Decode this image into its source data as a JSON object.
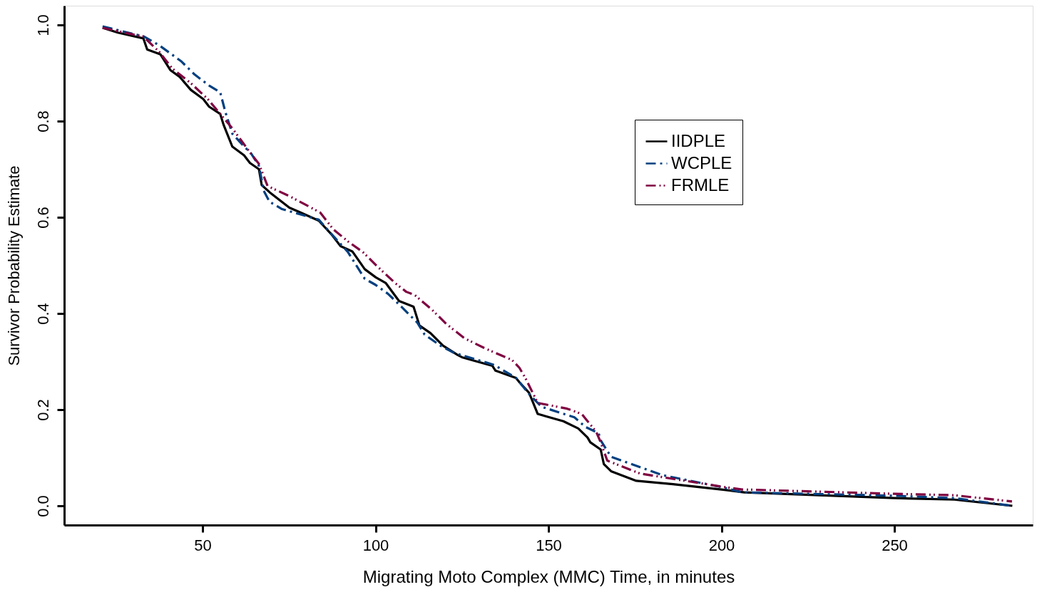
{
  "chart_data": {
    "type": "line",
    "xlabel": "Migrating Moto Complex (MMC) Time, in minutes",
    "ylabel": "Survivor Probability Estimate",
    "xlim": [
      10,
      290
    ],
    "xticks": [
      50,
      100,
      150,
      200,
      250
    ],
    "ylim": [
      -0.04,
      1.04
    ],
    "yticks": [
      {
        "value": 0,
        "label": "0.0"
      },
      0.2,
      0.4,
      0.6,
      0.8,
      {
        "value": 1,
        "label": "1.0"
      }
    ],
    "grid": false,
    "legend": "top right",
    "series": [
      {
        "name": "IIDPLE",
        "color": "#000000",
        "line_style": "solid",
        "x": [
          21.1,
          25.5,
          32.9,
          34.0,
          37.8,
          40.7,
          43.4,
          46.6,
          50.2,
          51.9,
          55.1,
          56.1,
          58.6,
          62.0,
          63.7,
          66.3,
          67.1,
          69.4,
          75.1,
          78.3,
          83.6,
          87.2,
          89.9,
          93.3,
          96.9,
          100.1,
          103.0,
          106.8,
          111.0,
          112.7,
          115.9,
          119.5,
          123.7,
          125.0,
          133.8,
          134.7,
          140.6,
          141.6,
          144.4,
          146.9,
          154.3,
          158.6,
          161.3,
          162.1,
          165.1,
          166.0,
          168.1,
          175.4,
          186.0,
          200.0,
          206.6,
          250.0,
          267.3,
          284.1
        ],
        "values": [
          0.994,
          0.984,
          0.972,
          0.949,
          0.939,
          0.906,
          0.892,
          0.865,
          0.846,
          0.83,
          0.815,
          0.792,
          0.747,
          0.729,
          0.713,
          0.7,
          0.667,
          0.652,
          0.62,
          0.61,
          0.593,
          0.565,
          0.54,
          0.529,
          0.492,
          0.475,
          0.463,
          0.426,
          0.414,
          0.375,
          0.359,
          0.333,
          0.314,
          0.309,
          0.291,
          0.281,
          0.266,
          0.257,
          0.235,
          0.191,
          0.176,
          0.161,
          0.142,
          0.132,
          0.117,
          0.087,
          0.072,
          0.052,
          0.045,
          0.034,
          0.028,
          0.016,
          0.013,
          0.0
        ]
      },
      {
        "name": "WCPLE",
        "color": "#003f7f",
        "line_style": "dashdot",
        "x": [
          21.1,
          33.0,
          37.6,
          42.0,
          43.9,
          47.7,
          51.9,
          55.1,
          56.6,
          58.6,
          61.4,
          64.1,
          66.3,
          67.7,
          69.4,
          73.0,
          83.6,
          87.8,
          92.0,
          96.9,
          99.9,
          103.6,
          107.2,
          112.1,
          114.2,
          118.8,
          122.7,
          134.3,
          140.6,
          144.8,
          148.0,
          157.5,
          160.7,
          164.5,
          165.1,
          168.1,
          182.8,
          200.0,
          206.0,
          250.0,
          267.3,
          284.0
        ],
        "values": [
          0.997,
          0.976,
          0.957,
          0.934,
          0.924,
          0.897,
          0.874,
          0.86,
          0.819,
          0.774,
          0.752,
          0.732,
          0.707,
          0.655,
          0.632,
          0.617,
          0.595,
          0.561,
          0.528,
          0.472,
          0.46,
          0.441,
          0.416,
          0.381,
          0.356,
          0.333,
          0.318,
          0.293,
          0.266,
          0.229,
          0.206,
          0.184,
          0.164,
          0.151,
          0.136,
          0.102,
          0.064,
          0.039,
          0.028,
          0.021,
          0.016,
          0.0
        ]
      },
      {
        "name": "FRMLE",
        "color": "#7f0040",
        "line_style": "dashdotdot",
        "x": [
          21.1,
          28.7,
          32.9,
          37.6,
          41.3,
          46.6,
          51.5,
          55.1,
          58.6,
          63.5,
          66.3,
          68.8,
          75.1,
          84.0,
          87.8,
          92.0,
          96.3,
          100.5,
          105.7,
          108.9,
          111.4,
          116.3,
          120.5,
          125.8,
          132.1,
          139.5,
          141.6,
          143.3,
          146.9,
          155.4,
          159.6,
          163.8,
          165.1,
          167.0,
          176.5,
          200.0,
          206.0,
          250.0,
          267.3,
          284.0
        ],
        "values": [
          0.994,
          0.982,
          0.976,
          0.943,
          0.909,
          0.879,
          0.846,
          0.815,
          0.785,
          0.737,
          0.711,
          0.665,
          0.644,
          0.61,
          0.575,
          0.55,
          0.528,
          0.498,
          0.463,
          0.445,
          0.438,
          0.408,
          0.378,
          0.348,
          0.326,
          0.303,
          0.287,
          0.266,
          0.214,
          0.202,
          0.191,
          0.154,
          0.132,
          0.094,
          0.067,
          0.04,
          0.034,
          0.025,
          0.022,
          0.009
        ]
      }
    ]
  }
}
